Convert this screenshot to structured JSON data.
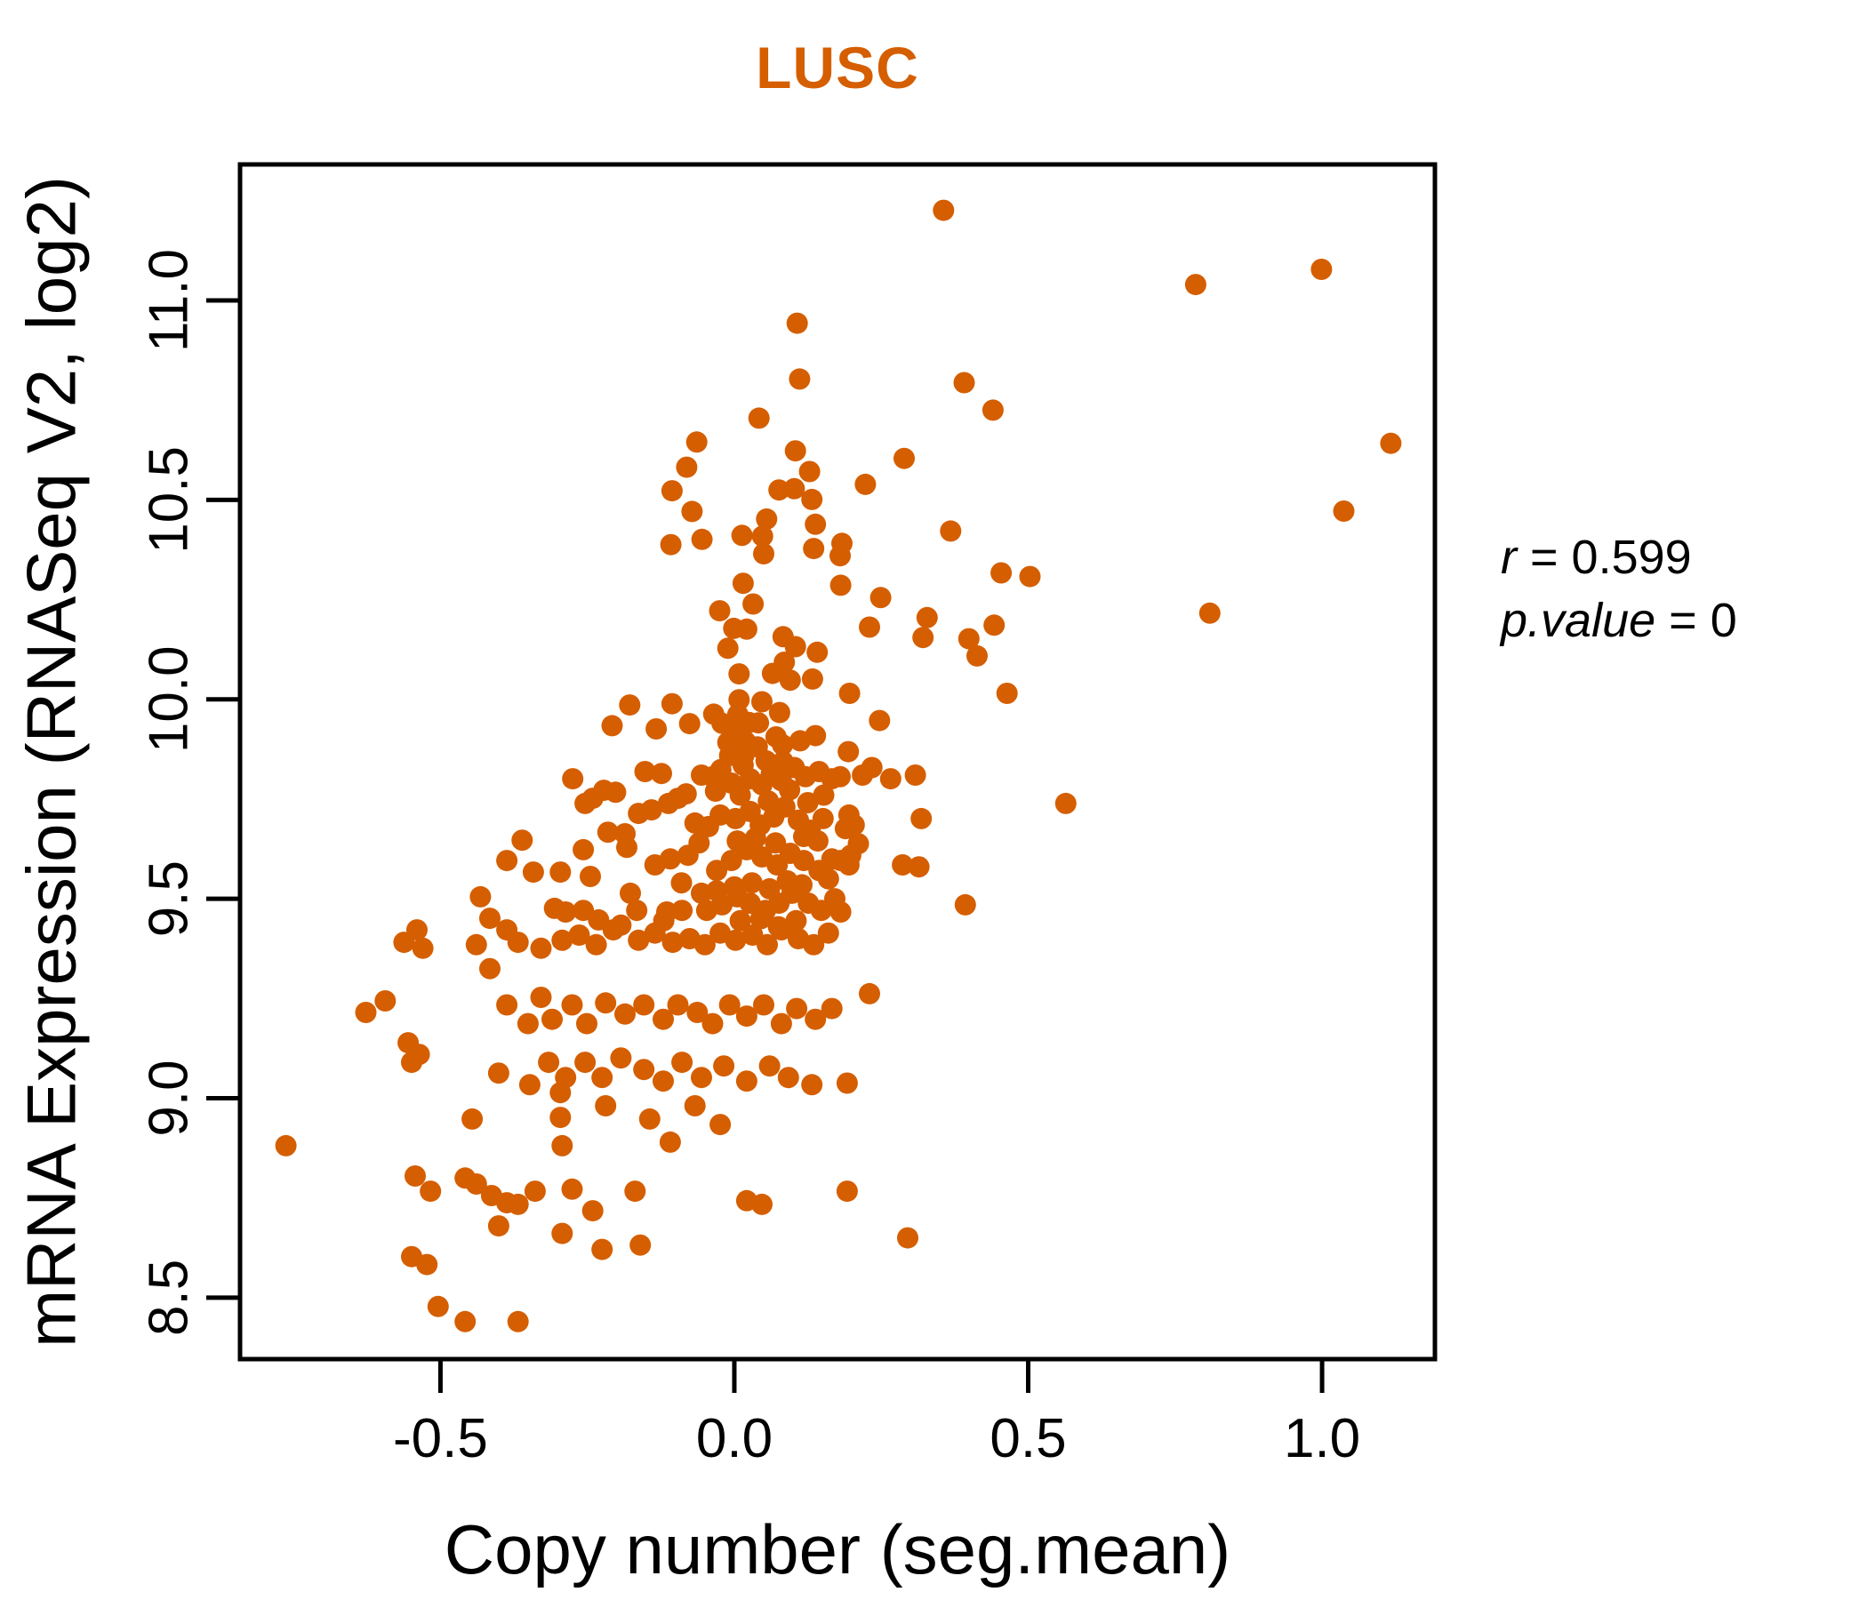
{
  "title": "LUSC",
  "colors": {
    "title": "#D55E00",
    "point": "#D55E00",
    "axis": "#000000",
    "background": "#FFFFFF"
  },
  "annotation": {
    "lines": [
      {
        "name": "r",
        "eq": " = ",
        "value": "0.599"
      },
      {
        "name": "p.value",
        "eq": " = ",
        "value": "0"
      }
    ]
  },
  "chart_data": {
    "type": "scatter",
    "title": "LUSC",
    "xlabel": "Copy number (seg.mean)",
    "ylabel": "mRNA Expression (RNASeq V2, log2)",
    "x_ticks": [
      -0.5,
      0.0,
      0.5,
      1.0
    ],
    "y_ticks": [
      8.5,
      9.0,
      9.5,
      10.0,
      10.5,
      11.0
    ],
    "xlim": [
      -0.841,
      1.192
    ],
    "ylim": [
      8.346,
      11.341
    ],
    "grid": false,
    "legend": "none",
    "marker_radius_px": 12,
    "annotations": [
      "r = 0.599",
      "p.value = 0"
    ],
    "series_name": "samples",
    "points": [
      [
        0.107,
        10.943
      ],
      [
        0.111,
        10.803
      ],
      [
        0.042,
        10.705
      ],
      [
        -0.064,
        10.645
      ],
      [
        -0.081,
        10.582
      ],
      [
        0.104,
        10.623
      ],
      [
        0.128,
        10.571
      ],
      [
        -0.106,
        10.523
      ],
      [
        0.076,
        10.525
      ],
      [
        0.102,
        10.528
      ],
      [
        0.132,
        10.501
      ],
      [
        -0.072,
        10.471
      ],
      [
        0.055,
        10.452
      ],
      [
        0.138,
        10.439
      ],
      [
        -0.055,
        10.401
      ],
      [
        0.013,
        10.411
      ],
      [
        0.048,
        10.409
      ],
      [
        -0.108,
        10.388
      ],
      [
        0.05,
        10.365
      ],
      [
        0.135,
        10.378
      ],
      [
        0.015,
        10.291
      ],
      [
        0.032,
        10.239
      ],
      [
        -0.025,
        10.222
      ],
      [
        -0.001,
        10.178
      ],
      [
        0.021,
        10.176
      ],
      [
        -0.011,
        10.128
      ],
      [
        0.083,
        10.157
      ],
      [
        0.104,
        10.132
      ],
      [
        0.141,
        10.118
      ],
      [
        0.085,
        10.093
      ],
      [
        0.065,
        10.065
      ],
      [
        0.008,
        10.064
      ],
      [
        0.095,
        10.048
      ],
      [
        0.133,
        10.051
      ],
      [
        0.008,
        9.999
      ],
      [
        0.047,
        9.994
      ],
      [
        0.006,
        9.962
      ],
      [
        0.077,
        9.967
      ],
      [
        -0.003,
        9.929
      ],
      [
        -0.178,
        9.986
      ],
      [
        -0.106,
        9.989
      ],
      [
        -0.208,
        9.934
      ],
      [
        -0.133,
        9.926
      ],
      [
        -0.076,
        9.939
      ],
      [
        -0.035,
        9.963
      ],
      [
        -0.021,
        9.94
      ],
      [
        0.025,
        9.942
      ],
      [
        0.041,
        9.941
      ],
      [
        0.071,
        9.906
      ],
      [
        -0.011,
        9.892
      ],
      [
        0.019,
        9.894
      ],
      [
        0.039,
        9.881
      ],
      [
        0.082,
        9.886
      ],
      [
        0.112,
        9.896
      ],
      [
        0.138,
        9.909
      ],
      [
        -0.008,
        9.859
      ],
      [
        0.016,
        9.859
      ],
      [
        0.054,
        9.846
      ],
      [
        0.083,
        9.844
      ],
      [
        0.356,
        11.226
      ],
      [
        0.785,
        11.04
      ],
      [
        0.999,
        11.078
      ],
      [
        0.391,
        10.794
      ],
      [
        0.44,
        10.725
      ],
      [
        1.117,
        10.642
      ],
      [
        0.289,
        10.604
      ],
      [
        0.223,
        10.539
      ],
      [
        1.037,
        10.472
      ],
      [
        0.368,
        10.422
      ],
      [
        0.454,
        10.317
      ],
      [
        0.503,
        10.308
      ],
      [
        0.249,
        10.255
      ],
      [
        0.809,
        10.216
      ],
      [
        0.23,
        10.181
      ],
      [
        0.328,
        10.205
      ],
      [
        0.321,
        10.155
      ],
      [
        0.442,
        10.186
      ],
      [
        0.399,
        10.152
      ],
      [
        0.413,
        10.109
      ],
      [
        0.196,
        10.015
      ],
      [
        0.464,
        10.015
      ],
      [
        0.247,
        9.947
      ],
      [
        0.183,
        10.391
      ],
      [
        0.18,
        10.36
      ],
      [
        0.181,
        10.286
      ],
      [
        0.194,
        9.869
      ],
      [
        -0.275,
        9.801
      ],
      [
        -0.241,
        9.752
      ],
      [
        -0.222,
        9.772
      ],
      [
        -0.202,
        9.767
      ],
      [
        -0.152,
        9.819
      ],
      [
        -0.124,
        9.814
      ],
      [
        -0.096,
        9.752
      ],
      [
        -0.082,
        9.763
      ],
      [
        -0.056,
        9.81
      ],
      [
        -0.037,
        9.806
      ],
      [
        -0.023,
        9.824
      ],
      [
        -0.005,
        9.79
      ],
      [
        0.015,
        9.835
      ],
      [
        0.027,
        9.801
      ],
      [
        0.047,
        9.786
      ],
      [
        0.063,
        9.814
      ],
      [
        0.08,
        9.796
      ],
      [
        0.102,
        9.829
      ],
      [
        0.121,
        9.806
      ],
      [
        0.144,
        9.819
      ],
      [
        0.166,
        9.801
      ],
      [
        -0.254,
        9.739
      ],
      [
        -0.163,
        9.714
      ],
      [
        -0.141,
        9.723
      ],
      [
        -0.112,
        9.739
      ],
      [
        -0.067,
        9.69
      ],
      [
        -0.044,
        9.681
      ],
      [
        -0.024,
        9.71
      ],
      [
        0.002,
        9.701
      ],
      [
        0.027,
        9.719
      ],
      [
        0.044,
        9.685
      ],
      [
        0.067,
        9.705
      ],
      [
        0.086,
        9.73
      ],
      [
        0.109,
        9.697
      ],
      [
        0.129,
        9.672
      ],
      [
        0.151,
        9.701
      ],
      [
        -0.215,
        9.667
      ],
      [
        -0.186,
        9.663
      ],
      [
        -0.361,
        9.647
      ],
      [
        -0.387,
        9.596
      ],
      [
        -0.342,
        9.567
      ],
      [
        -0.296,
        9.567
      ],
      [
        -0.257,
        9.623
      ],
      [
        -0.245,
        9.556
      ],
      [
        -0.183,
        9.629
      ],
      [
        -0.135,
        9.585
      ],
      [
        -0.109,
        9.6
      ],
      [
        -0.079,
        9.609
      ],
      [
        -0.03,
        9.571
      ],
      [
        -0.005,
        9.596
      ],
      [
        0.021,
        9.623
      ],
      [
        0.047,
        9.605
      ],
      [
        0.073,
        9.585
      ],
      [
        0.095,
        9.614
      ],
      [
        0.118,
        9.596
      ],
      [
        0.144,
        9.571
      ],
      [
        0.166,
        9.6
      ],
      [
        -0.432,
        9.505
      ],
      [
        -0.416,
        9.451
      ],
      [
        -0.306,
        9.476
      ],
      [
        -0.287,
        9.467
      ],
      [
        -0.257,
        9.471
      ],
      [
        -0.231,
        9.447
      ],
      [
        -0.206,
        9.422
      ],
      [
        -0.177,
        9.514
      ],
      [
        -0.166,
        9.471
      ],
      [
        -0.115,
        9.467
      ],
      [
        -0.089,
        9.471
      ],
      [
        -0.056,
        9.514
      ],
      [
        -0.047,
        9.471
      ],
      [
        -0.021,
        9.485
      ],
      [
        0.005,
        9.505
      ],
      [
        0.027,
        9.489
      ],
      [
        0.053,
        9.471
      ],
      [
        0.076,
        9.489
      ],
      [
        0.098,
        9.514
      ],
      [
        0.126,
        9.489
      ],
      [
        0.148,
        9.471
      ],
      [
        0.171,
        9.5
      ],
      [
        -0.562,
        9.391
      ],
      [
        -0.54,
        9.422
      ],
      [
        -0.53,
        9.376
      ],
      [
        -0.439,
        9.385
      ],
      [
        -0.387,
        9.422
      ],
      [
        -0.368,
        9.391
      ],
      [
        -0.329,
        9.376
      ],
      [
        -0.293,
        9.396
      ],
      [
        -0.264,
        9.409
      ],
      [
        -0.235,
        9.385
      ],
      [
        -0.193,
        9.434
      ],
      [
        -0.163,
        9.396
      ],
      [
        -0.135,
        9.414
      ],
      [
        -0.105,
        9.391
      ],
      [
        -0.076,
        9.4
      ],
      [
        -0.05,
        9.385
      ],
      [
        -0.024,
        9.414
      ],
      [
        0.002,
        9.396
      ],
      [
        0.031,
        9.409
      ],
      [
        0.056,
        9.385
      ],
      [
        0.08,
        9.422
      ],
      [
        0.109,
        9.4
      ],
      [
        0.135,
        9.385
      ],
      [
        0.16,
        9.414
      ],
      [
        -0.627,
        9.215
      ],
      [
        -0.594,
        9.244
      ],
      [
        -0.555,
        9.139
      ],
      [
        -0.536,
        9.11
      ],
      [
        -0.416,
        9.325
      ],
      [
        -0.387,
        9.234
      ],
      [
        -0.351,
        9.187
      ],
      [
        -0.329,
        9.253
      ],
      [
        -0.31,
        9.198
      ],
      [
        -0.276,
        9.234
      ],
      [
        -0.251,
        9.187
      ],
      [
        -0.219,
        9.239
      ],
      [
        -0.186,
        9.211
      ],
      [
        -0.154,
        9.234
      ],
      [
        -0.121,
        9.198
      ],
      [
        -0.096,
        9.234
      ],
      [
        -0.063,
        9.215
      ],
      [
        -0.037,
        9.187
      ],
      [
        -0.008,
        9.234
      ],
      [
        0.021,
        9.206
      ],
      [
        0.05,
        9.234
      ],
      [
        0.08,
        9.187
      ],
      [
        0.106,
        9.225
      ],
      [
        0.138,
        9.198
      ],
      [
        0.166,
        9.225
      ],
      [
        -0.549,
        9.09
      ],
      [
        -0.446,
        8.948
      ],
      [
        -0.401,
        9.063
      ],
      [
        -0.348,
        9.034
      ],
      [
        -0.316,
        9.09
      ],
      [
        -0.287,
        9.052
      ],
      [
        -0.254,
        9.09
      ],
      [
        -0.225,
        9.052
      ],
      [
        -0.193,
        9.101
      ],
      [
        -0.154,
        9.072
      ],
      [
        -0.121,
        9.043
      ],
      [
        -0.089,
        9.09
      ],
      [
        -0.056,
        9.052
      ],
      [
        -0.018,
        9.081
      ],
      [
        0.021,
        9.043
      ],
      [
        0.06,
        9.081
      ],
      [
        0.092,
        9.052
      ],
      [
        0.132,
        9.034
      ],
      [
        -0.763,
        8.881
      ],
      [
        -0.543,
        8.805
      ],
      [
        -0.517,
        8.767
      ],
      [
        -0.458,
        8.8
      ],
      [
        -0.439,
        8.785
      ],
      [
        -0.296,
        9.014
      ],
      [
        -0.296,
        8.952
      ],
      [
        -0.293,
        8.881
      ],
      [
        -0.219,
        8.981
      ],
      [
        -0.144,
        8.948
      ],
      [
        -0.109,
        8.89
      ],
      [
        -0.024,
        8.934
      ],
      [
        -0.067,
        8.981
      ],
      [
        -0.413,
        8.756
      ],
      [
        -0.387,
        8.738
      ],
      [
        -0.401,
        8.68
      ],
      [
        -0.368,
        8.734
      ],
      [
        -0.339,
        8.767
      ],
      [
        -0.276,
        8.772
      ],
      [
        -0.241,
        8.718
      ],
      [
        -0.169,
        8.767
      ],
      [
        0.021,
        8.743
      ],
      [
        0.047,
        8.734
      ],
      [
        -0.293,
        8.661
      ],
      [
        -0.225,
        8.621
      ],
      [
        -0.16,
        8.632
      ],
      [
        -0.549,
        8.603
      ],
      [
        -0.523,
        8.583
      ],
      [
        -0.504,
        8.478
      ],
      [
        -0.458,
        8.44
      ],
      [
        -0.368,
        8.44
      ],
      [
        0.18,
        9.806
      ],
      [
        0.218,
        9.81
      ],
      [
        0.234,
        9.829
      ],
      [
        0.266,
        9.801
      ],
      [
        0.308,
        9.81
      ],
      [
        0.564,
        9.739
      ],
      [
        0.318,
        9.701
      ],
      [
        0.195,
        9.71
      ],
      [
        0.204,
        9.685
      ],
      [
        0.189,
        9.676
      ],
      [
        0.211,
        9.638
      ],
      [
        0.198,
        9.609
      ],
      [
        0.181,
        9.596
      ],
      [
        0.195,
        9.585
      ],
      [
        0.286,
        9.585
      ],
      [
        0.314,
        9.58
      ],
      [
        0.393,
        9.485
      ],
      [
        0.181,
        9.467
      ],
      [
        0.23,
        9.262
      ],
      [
        0.192,
        9.038
      ],
      [
        0.192,
        8.767
      ],
      [
        0.295,
        8.65
      ],
      [
        0.01,
        9.76
      ],
      [
        0.058,
        9.745
      ],
      [
        0.094,
        9.773
      ],
      [
        0.125,
        9.741
      ],
      [
        0.152,
        9.76
      ],
      [
        -0.032,
        9.77
      ],
      [
        0.036,
        9.652
      ],
      [
        0.118,
        9.656
      ],
      [
        0.005,
        9.645
      ],
      [
        -0.06,
        9.64
      ],
      [
        0.07,
        9.64
      ],
      [
        0.142,
        9.645
      ],
      [
        0.03,
        9.54
      ],
      [
        0.09,
        9.545
      ],
      [
        0.06,
        9.525
      ],
      [
        0.0,
        9.53
      ],
      [
        -0.09,
        9.54
      ],
      [
        0.115,
        9.535
      ],
      [
        0.16,
        9.55
      ],
      [
        -0.03,
        9.52
      ],
      [
        0.045,
        9.45
      ],
      [
        0.105,
        9.445
      ],
      [
        0.01,
        9.445
      ],
      [
        -0.12,
        9.445
      ],
      [
        0.075,
        9.43
      ]
    ]
  }
}
